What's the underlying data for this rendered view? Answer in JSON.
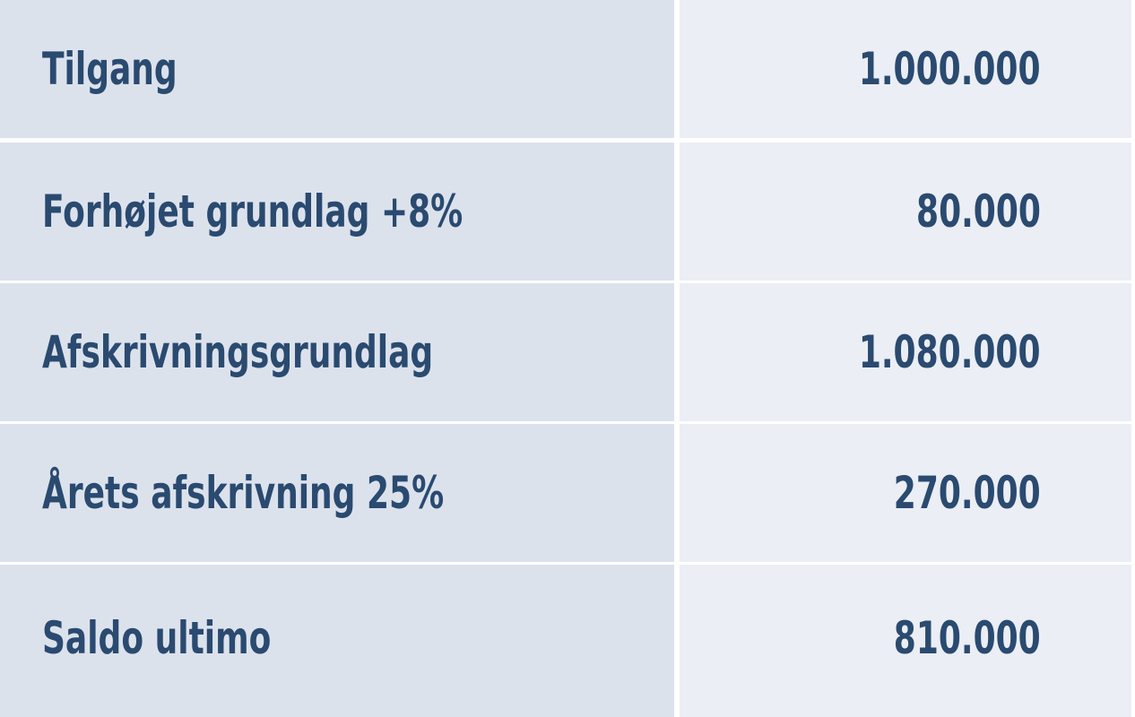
{
  "colors": {
    "label_bg": "#dce2ec",
    "value_bg": "#ebeef4",
    "text": "#2a4a70",
    "divider": "#ffffff"
  },
  "rows": [
    {
      "label": "Tilgang",
      "value": "1.000.000"
    },
    {
      "label": "Forhøjet grundlag +8%",
      "value": "80.000"
    },
    {
      "label": "Afskrivningsgrundlag",
      "value": "1.080.000"
    },
    {
      "label": "Årets afskrivning 25%",
      "value": "270.000"
    },
    {
      "label": "Saldo ultimo",
      "value": "810.000"
    }
  ]
}
